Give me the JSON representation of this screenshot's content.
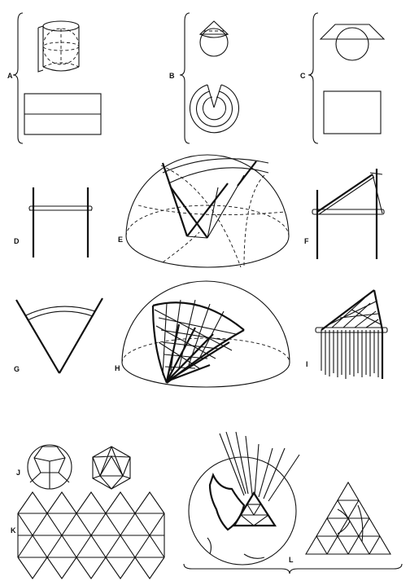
{
  "panels": [
    {
      "id": "A",
      "label": "A"
    },
    {
      "id": "B",
      "label": "B"
    },
    {
      "id": "C",
      "label": "C"
    },
    {
      "id": "D",
      "label": "D"
    },
    {
      "id": "E",
      "label": "E"
    },
    {
      "id": "F",
      "label": "F"
    },
    {
      "id": "G",
      "label": "G"
    },
    {
      "id": "H",
      "label": "H"
    },
    {
      "id": "I",
      "label": "I"
    },
    {
      "id": "J",
      "label": "J"
    },
    {
      "id": "K",
      "label": "K"
    },
    {
      "id": "L",
      "label": "L"
    }
  ]
}
